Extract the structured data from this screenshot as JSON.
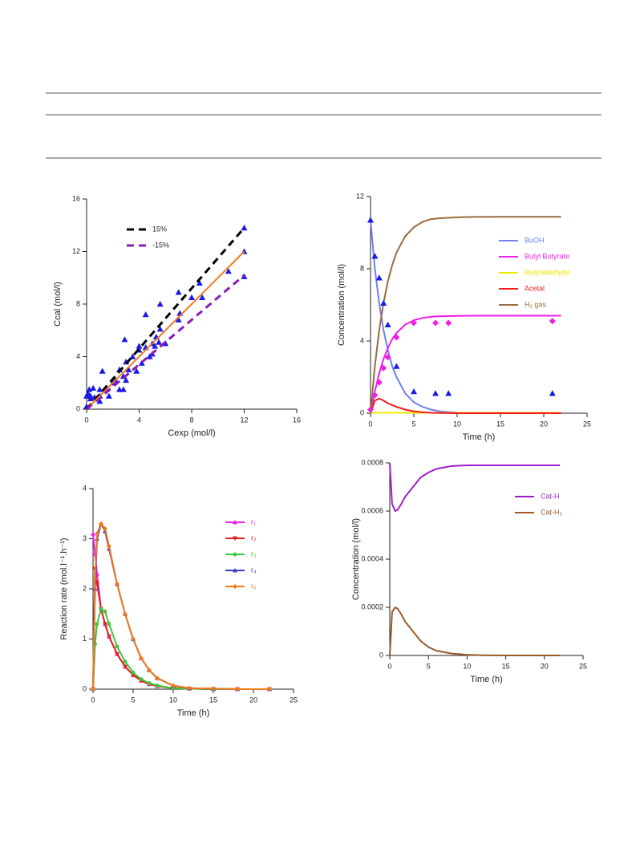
{
  "chart_data": [
    {
      "type": "scatter",
      "xlabel": "Cexp (mol/l)",
      "ylabel": "Ccal (mol/l)",
      "xlim": [
        0,
        16
      ],
      "ylim": [
        0,
        16
      ],
      "xticks": [
        0,
        4,
        8,
        12,
        16
      ],
      "yticks": [
        0,
        4,
        8,
        12,
        16
      ],
      "legend": "upper left",
      "series": [
        {
          "color": "#1a1ae6",
          "marker": "triangle",
          "x": [
            0,
            0,
            0.1,
            0.3,
            0.5,
            0.3,
            0.6,
            1,
            1,
            1.2,
            1.5,
            1.7,
            2,
            2.2,
            2.5,
            2.5,
            2.8,
            2.8,
            2.9,
            3,
            3,
            3.2,
            3.5,
            3.8,
            4,
            4,
            4.2,
            4.5,
            4.5,
            4.8,
            5,
            5,
            5.2,
            5.3,
            5.5,
            5.6,
            5.6,
            6,
            7,
            7.1,
            7,
            8,
            8.6,
            8.8,
            10.8,
            12,
            12,
            12,
            1,
            0.2
          ],
          "values": [
            1.0,
            0.2,
            1.2,
            1.0,
            1.6,
            0.8,
            0.9,
            0.6,
            1.0,
            2.9,
            1.5,
            1.0,
            2.0,
            2.2,
            3.0,
            1.5,
            1.5,
            2.5,
            5.3,
            3.6,
            2.2,
            3.0,
            4.0,
            2.9,
            4.8,
            4.5,
            3.5,
            7.2,
            4.7,
            4.0,
            4.2,
            5.0,
            4.8,
            5.5,
            5.1,
            8.0,
            6.1,
            5.0,
            8.9,
            7.3,
            6.8,
            8.5,
            9.6,
            8.5,
            10.5,
            13.8,
            12.0,
            10.1,
            1.5,
            1.5
          ]
        },
        {
          "name": "15%",
          "color": "#000000",
          "line": "dashed",
          "x": [
            0,
            12
          ],
          "values": [
            0,
            13.8
          ]
        },
        {
          "name": "-15%",
          "color": "#8a1ab8",
          "line": "dashed",
          "x": [
            0,
            12
          ],
          "values": [
            0,
            10.2
          ]
        },
        {
          "color": "#f07a1a",
          "line": "solid",
          "x": [
            0.3,
            12
          ],
          "values": [
            0.3,
            12
          ]
        }
      ]
    },
    {
      "type": "line",
      "xlabel": "Time (h)",
      "ylabel": "Concentration (mol/l)",
      "xlim": [
        0,
        25
      ],
      "ylim": [
        0,
        12
      ],
      "xticks": [
        0,
        5,
        10,
        15,
        20,
        25
      ],
      "yticks": [
        0,
        4,
        8,
        12
      ],
      "legend": "center right",
      "series": [
        {
          "name": "BuOH",
          "color": "#6f7ff0",
          "line": "solid",
          "x": [
            0,
            0.5,
            1,
            1.5,
            2,
            2.5,
            3,
            4,
            5,
            6,
            7,
            8,
            10,
            12,
            15,
            18,
            22
          ],
          "values": [
            10.7,
            8.0,
            6.1,
            4.6,
            3.5,
            2.6,
            2.0,
            1.1,
            0.6,
            0.35,
            0.2,
            0.1,
            0.03,
            0.01,
            0,
            0,
            0
          ]
        },
        {
          "name": "Butyl Butyrate",
          "color": "#f01ee6",
          "line": "solid",
          "x": [
            0,
            0.5,
            1,
            1.5,
            2,
            2.5,
            3,
            4,
            5,
            6,
            7,
            8,
            10,
            12,
            15,
            18,
            22
          ],
          "values": [
            0,
            1.2,
            2.2,
            3.0,
            3.6,
            4.1,
            4.45,
            4.9,
            5.15,
            5.28,
            5.34,
            5.37,
            5.39,
            5.4,
            5.4,
            5.4,
            5.4
          ]
        },
        {
          "name": "Butylaldehyde",
          "color": "#f0e600",
          "line": "solid",
          "x": [
            0,
            22
          ],
          "values": [
            0.02,
            0.02
          ]
        },
        {
          "name": "Acetal",
          "color": "#f01e1e",
          "line": "solid",
          "x": [
            0,
            0.5,
            1,
            1.5,
            2,
            2.5,
            3,
            4,
            5,
            6,
            7,
            8,
            10,
            22
          ],
          "values": [
            0,
            0.7,
            0.8,
            0.7,
            0.55,
            0.45,
            0.35,
            0.2,
            0.1,
            0.05,
            0.02,
            0.01,
            0,
            0
          ]
        },
        {
          "name": "H₂ gas",
          "color": "#9a6a3c",
          "line": "solid",
          "x": [
            0,
            0.5,
            1,
            1.5,
            2,
            2.5,
            3,
            4,
            5,
            6,
            7,
            8,
            10,
            12,
            15,
            18,
            22
          ],
          "values": [
            0,
            2.6,
            4.6,
            6.1,
            7.3,
            8.2,
            8.9,
            9.8,
            10.3,
            10.6,
            10.75,
            10.8,
            10.85,
            10.87,
            10.88,
            10.88,
            10.88
          ]
        },
        {
          "color": "#1a1ae6",
          "marker": "triangle",
          "x": [
            0,
            0.5,
            1,
            1.5,
            2,
            3,
            5,
            7.5,
            9,
            21
          ],
          "values": [
            10.7,
            8.7,
            7.5,
            6.1,
            4.9,
            2.6,
            1.2,
            1.1,
            1.1,
            1.1
          ]
        },
        {
          "color": "#f01ee6",
          "marker": "diamond",
          "x": [
            0,
            0.5,
            1,
            1.5,
            2,
            3,
            5,
            7.5,
            9,
            21
          ],
          "values": [
            0.2,
            1.0,
            1.7,
            2.5,
            3.1,
            4.2,
            5.0,
            5.0,
            5.0,
            5.1
          ]
        }
      ]
    },
    {
      "type": "line",
      "xlabel": "Time (h)",
      "ylabel": "Reaction rate (mol.l⁻¹.h⁻¹)",
      "xlim": [
        0,
        25
      ],
      "ylim": [
        0,
        4
      ],
      "xticks": [
        0,
        5,
        10,
        15,
        20,
        25
      ],
      "yticks": [
        0,
        1,
        2,
        3,
        4
      ],
      "legend": "upper right",
      "x": [
        0,
        0.25,
        0.5,
        1,
        1.5,
        2,
        3,
        4,
        5,
        6,
        7,
        8,
        10,
        12,
        15,
        18,
        22
      ],
      "series": [
        {
          "name": "r₁",
          "color": "#f01ee6",
          "line": "solid",
          "marker": "triangle",
          "values": [
            3.1,
            2.7,
            2.3,
            1.6,
            1.3,
            1.05,
            0.7,
            0.45,
            0.28,
            0.17,
            0.1,
            0.06,
            0.02,
            0.01,
            0,
            0,
            0
          ]
        },
        {
          "name": "r₂",
          "color": "#e61e1e",
          "line": "solid",
          "marker": "triangle-down",
          "values": [
            0,
            2.4,
            2.1,
            1.6,
            1.3,
            1.05,
            0.7,
            0.45,
            0.28,
            0.17,
            0.1,
            0.06,
            0.02,
            0.01,
            0,
            0,
            0
          ]
        },
        {
          "name": "r₃",
          "color": "#3cc83c",
          "line": "solid",
          "marker": "circle",
          "values": [
            0,
            0.9,
            1.3,
            1.6,
            1.55,
            1.3,
            0.85,
            0.55,
            0.33,
            0.2,
            0.12,
            0.07,
            0.02,
            0.01,
            0,
            0,
            0
          ]
        },
        {
          "name": "r₄",
          "color": "#3c3cc8",
          "line": "solid",
          "marker": "triangle",
          "values": [
            0,
            2.0,
            3.0,
            3.3,
            3.15,
            2.8,
            2.1,
            1.5,
            1.0,
            0.62,
            0.38,
            0.22,
            0.07,
            0.02,
            0.01,
            0,
            0
          ]
        },
        {
          "name": "r₅",
          "color": "#f07a1a",
          "line": "solid",
          "marker": "diamond",
          "values": [
            0,
            2.2,
            3.1,
            3.3,
            3.2,
            2.85,
            2.1,
            1.5,
            1.0,
            0.62,
            0.38,
            0.22,
            0.07,
            0.02,
            0.01,
            0,
            0
          ]
        }
      ]
    },
    {
      "type": "line",
      "xlabel": "Time (h)",
      "ylabel": "Concentration (mol/l)",
      "xlim": [
        0,
        25
      ],
      "ylim": [
        0,
        0.0008
      ],
      "xticks": [
        0,
        5,
        10,
        15,
        20,
        25
      ],
      "yticks": [
        0,
        0.0002,
        0.0004,
        0.0006,
        0.0008
      ],
      "legend": "upper right",
      "x": [
        0,
        0.3,
        0.7,
        1,
        1.5,
        2,
        3,
        4,
        5,
        6,
        8,
        10,
        12,
        15,
        18,
        22
      ],
      "series": [
        {
          "name": "Cat-H",
          "color": "#a01ec8",
          "line": "solid",
          "values": [
            0.0008,
            0.00063,
            0.0006,
            0.000605,
            0.00063,
            0.00066,
            0.0007,
            0.00074,
            0.00076,
            0.000775,
            0.000787,
            0.00079,
            0.00079,
            0.00079,
            0.00079,
            0.00079
          ]
        },
        {
          "name": "Cat-H₂",
          "color": "#9a5a28",
          "line": "solid",
          "values": [
            0,
            0.00018,
            0.0002,
            0.000195,
            0.00017,
            0.00014,
            0.0001,
            6e-05,
            3.5e-05,
            2e-05,
            8e-06,
            3e-06,
            1e-06,
            0,
            0,
            0
          ]
        }
      ]
    }
  ]
}
